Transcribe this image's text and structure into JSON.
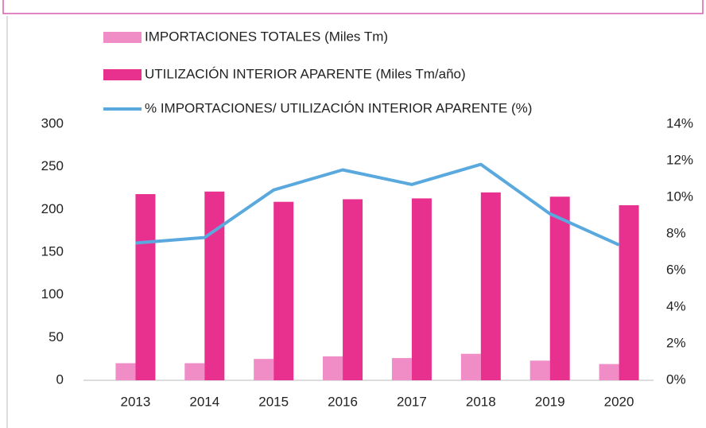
{
  "chart_data": {
    "type": "bar",
    "categories": [
      "2013",
      "2014",
      "2015",
      "2016",
      "2017",
      "2018",
      "2019",
      "2020"
    ],
    "series": [
      {
        "name": "IMPORTACIONES TOTALES (Miles Tm)",
        "color": "#f08cc6",
        "values": [
          20,
          20,
          25,
          28,
          26,
          31,
          23,
          19
        ]
      },
      {
        "name": "UTILIZACIÓN INTERIOR APARENTE (Miles Tm/año)",
        "color": "#e8318f",
        "values": [
          218,
          221,
          209,
          212,
          213,
          220,
          215,
          205
        ]
      },
      {
        "name": "% IMPORTACIONES/ UTILIZACIÓN INTERIOR APARENTE (%)",
        "color": "#5aa9de",
        "type": "line",
        "axis": "y2",
        "values": [
          7.5,
          7.8,
          10.4,
          11.5,
          10.7,
          11.8,
          9.1,
          7.4
        ]
      }
    ],
    "ylim": [
      0,
      300
    ],
    "yticks": [
      0,
      50,
      100,
      150,
      200,
      250,
      300
    ],
    "y2lim": [
      0,
      14
    ],
    "y2ticks": [
      {
        "value": 0,
        "label": "0%"
      },
      {
        "value": 2,
        "label": "2%"
      },
      {
        "value": 4,
        "label": "4%"
      },
      {
        "value": 6,
        "label": "6%"
      },
      {
        "value": 8,
        "label": "8%"
      },
      {
        "value": 10,
        "label": "10%"
      },
      {
        "value": 12,
        "label": "12%"
      },
      {
        "value": 14,
        "label": "14%"
      }
    ],
    "grid": false
  }
}
